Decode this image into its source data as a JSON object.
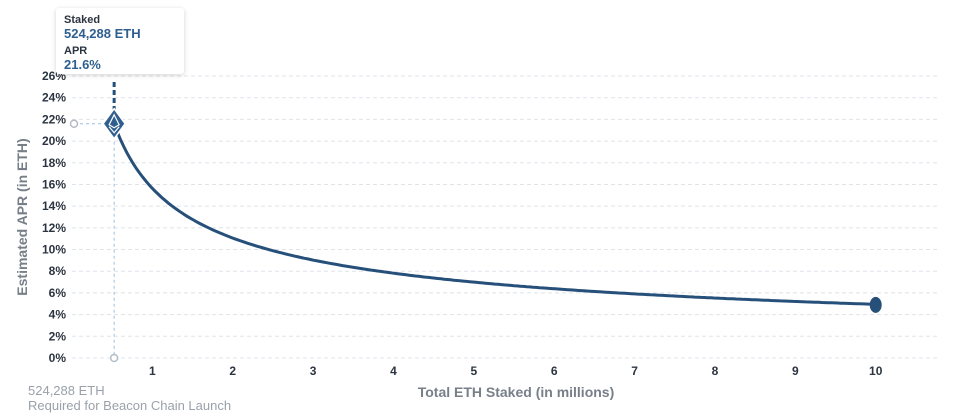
{
  "tooltip": {
    "staked_label": "Staked",
    "staked_value": "524,288 ETH",
    "apr_label": "APR",
    "apr_value": "21.6%"
  },
  "footnote": {
    "amount": "524,288 ETH",
    "caption": "Required for Beacon Chain Launch"
  },
  "colors": {
    "line": "#26507a",
    "marker": "#2f5f8f",
    "grid": "#dfe3e8",
    "guide": "#9cc0e0"
  },
  "chart_data": {
    "type": "line",
    "title": "",
    "xlabel": "Total ETH Staked  (in millions)",
    "ylabel": "Estimated APR (in ETH)",
    "xlim": [
      0,
      10.8
    ],
    "ylim": [
      0,
      26
    ],
    "x_ticks": [
      1,
      2,
      3,
      4,
      5,
      6,
      7,
      8,
      9,
      10
    ],
    "x_tick_labels": [
      "1",
      "2",
      "3",
      "4",
      "5",
      "6",
      "7",
      "8",
      "9",
      "10"
    ],
    "y_ticks": [
      0,
      2,
      4,
      6,
      8,
      10,
      12,
      14,
      16,
      18,
      20,
      22,
      24,
      26
    ],
    "y_tick_labels": [
      "0%",
      "2%",
      "4%",
      "6%",
      "8%",
      "10%",
      "12%",
      "14%",
      "16%",
      "18%",
      "20%",
      "22%",
      "24%",
      "26%"
    ],
    "grid": true,
    "legend": "none",
    "series": [
      {
        "x": [
          0.524288,
          1,
          2,
          3,
          4,
          5,
          6,
          7,
          8,
          9,
          10
        ],
        "values": [
          21.6,
          15.6,
          11.1,
          9.0,
          7.8,
          7.0,
          6.4,
          5.9,
          5.5,
          5.2,
          4.9
        ]
      }
    ],
    "highlight": {
      "x": 0.524288,
      "y": 21.6
    },
    "end_point": {
      "x": 10,
      "y": 4.9
    }
  }
}
